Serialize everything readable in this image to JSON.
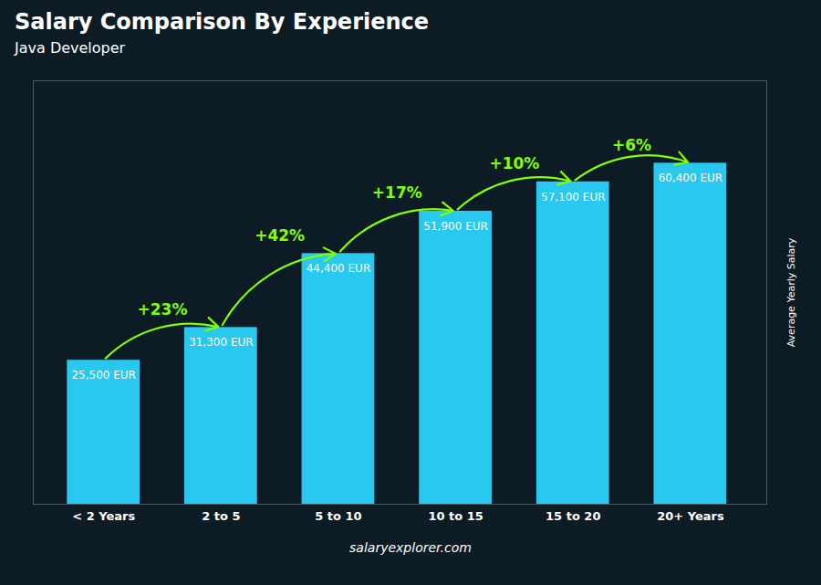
{
  "chart_data": {
    "type": "bar",
    "title": "Salary Comparison By Experience",
    "subtitle": "Java Developer",
    "caption": "salaryexplorer.com",
    "ylabel": "Average Yearly Salary",
    "categories": [
      "< 2 Years",
      "2 to 5",
      "5 to 10",
      "10 to 15",
      "15 to 20",
      "20+ Years"
    ],
    "values": [
      25500,
      31300,
      44400,
      51900,
      57100,
      60400
    ],
    "value_labels": [
      "25,500 EUR",
      "31,300 EUR",
      "44,400 EUR",
      "51,900 EUR",
      "57,100 EUR",
      "60,400 EUR"
    ],
    "data_labels": true,
    "color": "#29c8f0",
    "ylim": [
      0,
      75000
    ],
    "tick_labels": "x",
    "grid": false,
    "annotations": [
      {
        "text": "+23%",
        "color": "#7fff00"
      },
      {
        "text": "+42%",
        "color": "#7fff00"
      },
      {
        "text": "+17%",
        "color": "#7fff00"
      },
      {
        "text": "+10%",
        "color": "#7fff00"
      },
      {
        "text": "+6%",
        "color": "#7fff00"
      }
    ]
  }
}
